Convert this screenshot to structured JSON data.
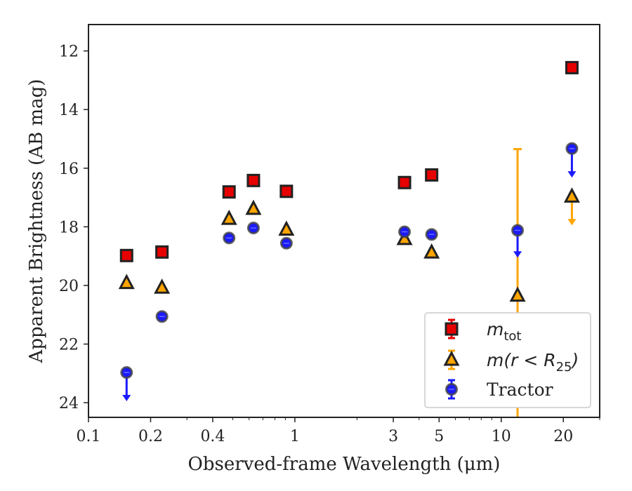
{
  "chart_data": {
    "type": "scatter",
    "title": "",
    "xlabel": "Observed-frame Wavelength (μm)",
    "ylabel": "Apparent Brightness (AB mag)",
    "xscale": "log",
    "xlim": [
      0.1,
      30
    ],
    "ylim": [
      24.5,
      11.1
    ],
    "y_inverted": true,
    "grid": false,
    "legend_position": "lower-right",
    "x_ticks": [
      {
        "value": 0.1,
        "label": "0.1"
      },
      {
        "value": 0.2,
        "label": "0.2"
      },
      {
        "value": 0.4,
        "label": "0.4"
      },
      {
        "value": 1,
        "label": "1"
      },
      {
        "value": 3,
        "label": "3"
      },
      {
        "value": 5,
        "label": "5"
      },
      {
        "value": 10,
        "label": "10"
      },
      {
        "value": 20,
        "label": "20"
      }
    ],
    "y_ticks": [
      {
        "value": 12,
        "label": "12"
      },
      {
        "value": 14,
        "label": "14"
      },
      {
        "value": 16,
        "label": "16"
      },
      {
        "value": 18,
        "label": "18"
      },
      {
        "value": 20,
        "label": "20"
      },
      {
        "value": 22,
        "label": "22"
      },
      {
        "value": 24,
        "label": "24"
      }
    ],
    "series": [
      {
        "name": "m_tot",
        "legend_label": {
          "main": "m",
          "sub": "tot",
          "rest": ""
        },
        "marker": "square",
        "color": "#e60000",
        "edge": "#222222",
        "points": [
          {
            "x": 0.153,
            "y": 18.98
          },
          {
            "x": 0.227,
            "y": 18.86
          },
          {
            "x": 0.48,
            "y": 16.81
          },
          {
            "x": 0.63,
            "y": 16.42
          },
          {
            "x": 0.91,
            "y": 16.79
          },
          {
            "x": 3.4,
            "y": 16.49
          },
          {
            "x": 4.6,
            "y": 16.23
          },
          {
            "x": 22,
            "y": 12.57
          }
        ]
      },
      {
        "name": "m(r < R25)",
        "legend_label": {
          "main": "m(r < R",
          "sub": "25",
          "rest": ")"
        },
        "marker": "triangle",
        "color": "#ffa500",
        "edge": "#222222",
        "points": [
          {
            "x": 0.153,
            "y": 19.92
          },
          {
            "x": 0.227,
            "y": 20.08
          },
          {
            "x": 0.48,
            "y": 17.73
          },
          {
            "x": 0.63,
            "y": 17.39
          },
          {
            "x": 0.91,
            "y": 18.1
          },
          {
            "x": 3.4,
            "y": 18.42
          },
          {
            "x": 4.6,
            "y": 18.88
          },
          {
            "x": 12,
            "y": 20.35,
            "err_low": 15.35,
            "err_high": 24.5
          },
          {
            "x": 22,
            "y": 16.97,
            "upper_limit_to": 17.95
          }
        ]
      },
      {
        "name": "Tractor",
        "legend_label": {
          "main": "Tractor",
          "sub": "",
          "rest": ""
        },
        "marker": "circle",
        "color": "#1a1aff",
        "edge": "#444444",
        "points": [
          {
            "x": 0.153,
            "y": 22.97,
            "upper_limit_to": 23.95
          },
          {
            "x": 0.227,
            "y": 21.06
          },
          {
            "x": 0.48,
            "y": 18.38
          },
          {
            "x": 0.63,
            "y": 18.04
          },
          {
            "x": 0.91,
            "y": 18.56
          },
          {
            "x": 3.4,
            "y": 18.17
          },
          {
            "x": 4.6,
            "y": 18.26
          },
          {
            "x": 12,
            "y": 18.12,
            "upper_limit_to": 19.05
          },
          {
            "x": 22,
            "y": 15.33,
            "upper_limit_to": 16.32
          }
        ]
      }
    ]
  }
}
